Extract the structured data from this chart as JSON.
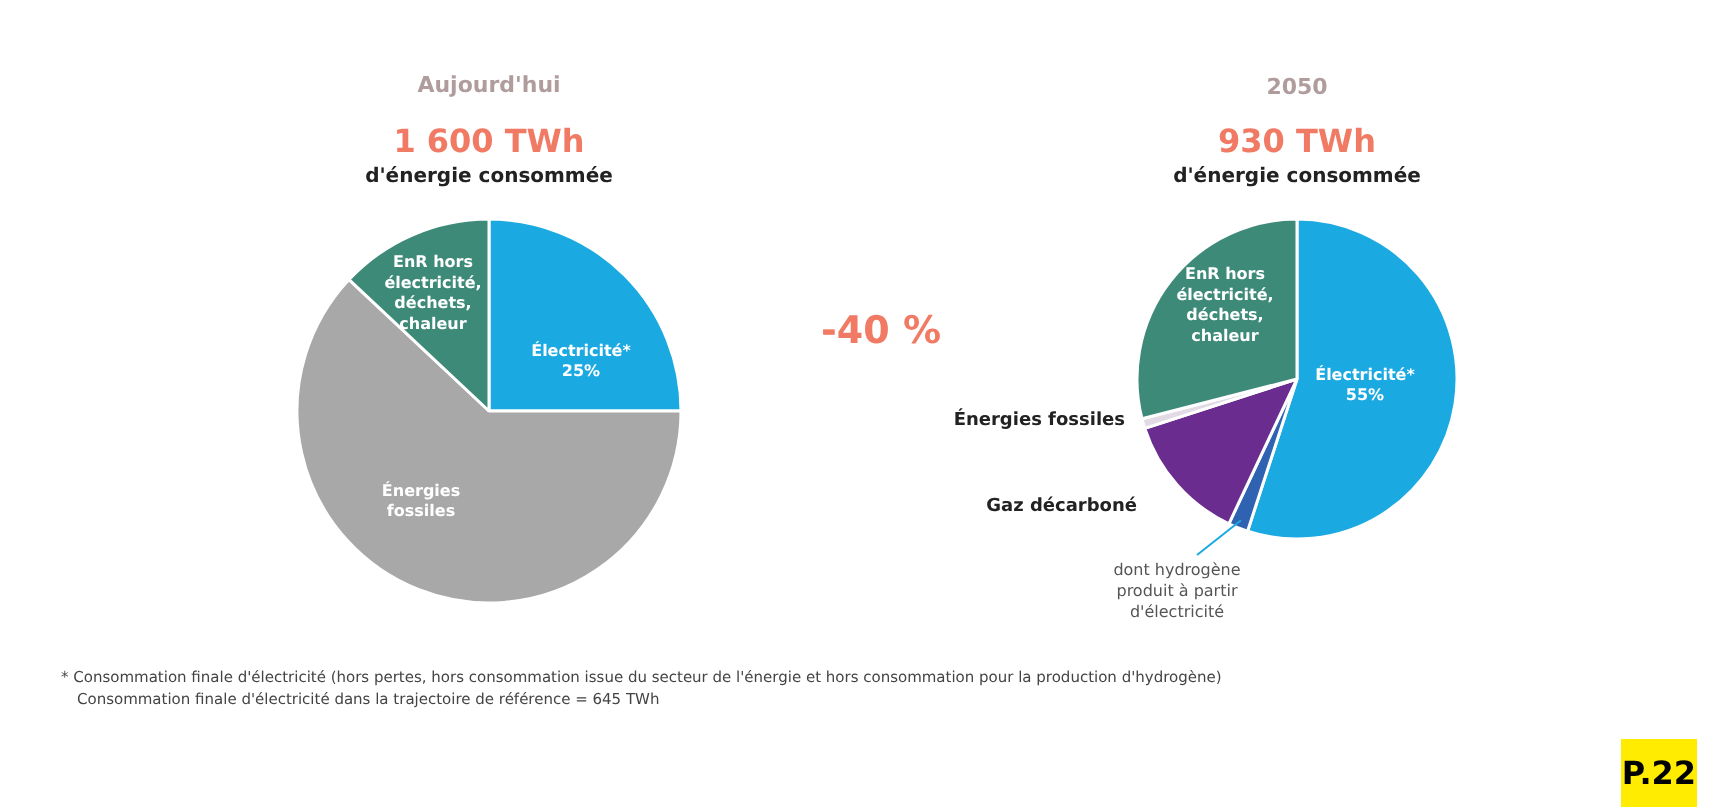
{
  "chart_data": [
    {
      "type": "pie",
      "title": "Aujourd'hui",
      "subtitle": "1 600 TWh",
      "categories": [
        "Électricité*",
        "Énergies fossiles",
        "EnR hors électricité, déchets, chaleur"
      ],
      "values": [
        25,
        62,
        13
      ],
      "value_labels": [
        "25%",
        null,
        null
      ],
      "colors": [
        "#1aa9e0",
        "#a8a8a8",
        "#3d8a78"
      ],
      "annotations": [
        "d'énergie consommée",
        "-40 %",
        "* Consommation finale d'électricité (hors pertes, hors consommation issue du secteur de l'énergie et hors consommation pour la production d'hydrogène)",
        "Consommation finale d'électricité dans la trajectoire de référence = 645 TWh"
      ],
      "legend": false
    },
    {
      "type": "pie",
      "title": "2050",
      "subtitle": "930 TWh",
      "categories": [
        "Électricité*",
        "dont hydrogène produit à partir d'électricité",
        "Gaz décarboné",
        "Énergies fossiles",
        "EnR hors électricité, déchets, chaleur"
      ],
      "values": [
        55,
        2,
        13,
        1,
        29
      ],
      "value_labels": [
        "55%",
        null,
        null,
        null,
        null
      ],
      "colors": [
        "#1aa9e0",
        "#2f62b0",
        "#6a2c8f",
        "#e2dbe6",
        "#3d8a78"
      ],
      "annotations": [
        "d'énergie consommée",
        "P.22"
      ],
      "legend": false
    }
  ]
}
